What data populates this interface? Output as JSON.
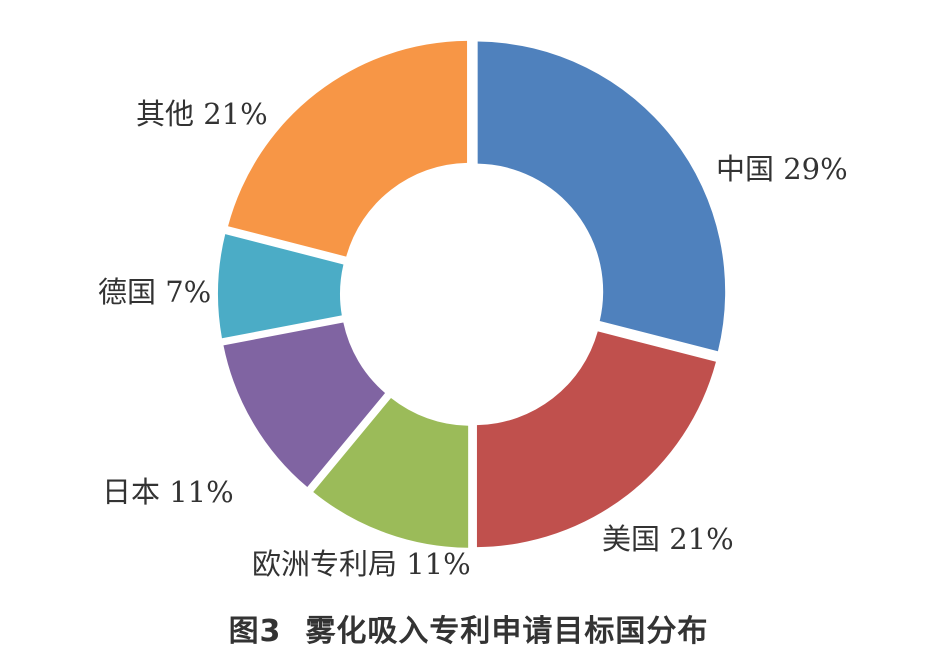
{
  "caption": {
    "figure_number": "图3",
    "title": "雾化吸入专利申请目标国分布"
  },
  "chart_data": {
    "type": "pie",
    "donut": true,
    "start": "12 o'clock",
    "direction": "clockwise",
    "slices": [
      {
        "name": "中国",
        "value": 29,
        "label": "中国 29%",
        "color": "#4f81bd"
      },
      {
        "name": "美国",
        "value": 21,
        "label": "美国 21%",
        "color": "#c0504d"
      },
      {
        "name": "欧洲专利局",
        "value": 11,
        "label": "欧洲专利局 11%",
        "color": "#9bbb59"
      },
      {
        "name": "日本",
        "value": 11,
        "label": "日本 11%",
        "color": "#8064a2"
      },
      {
        "name": "德国",
        "value": 7,
        "label": "德国 7%",
        "color": "#4bacc6"
      },
      {
        "name": "其他",
        "value": 21,
        "label": "其他 21%",
        "color": "#f79646"
      }
    ]
  }
}
